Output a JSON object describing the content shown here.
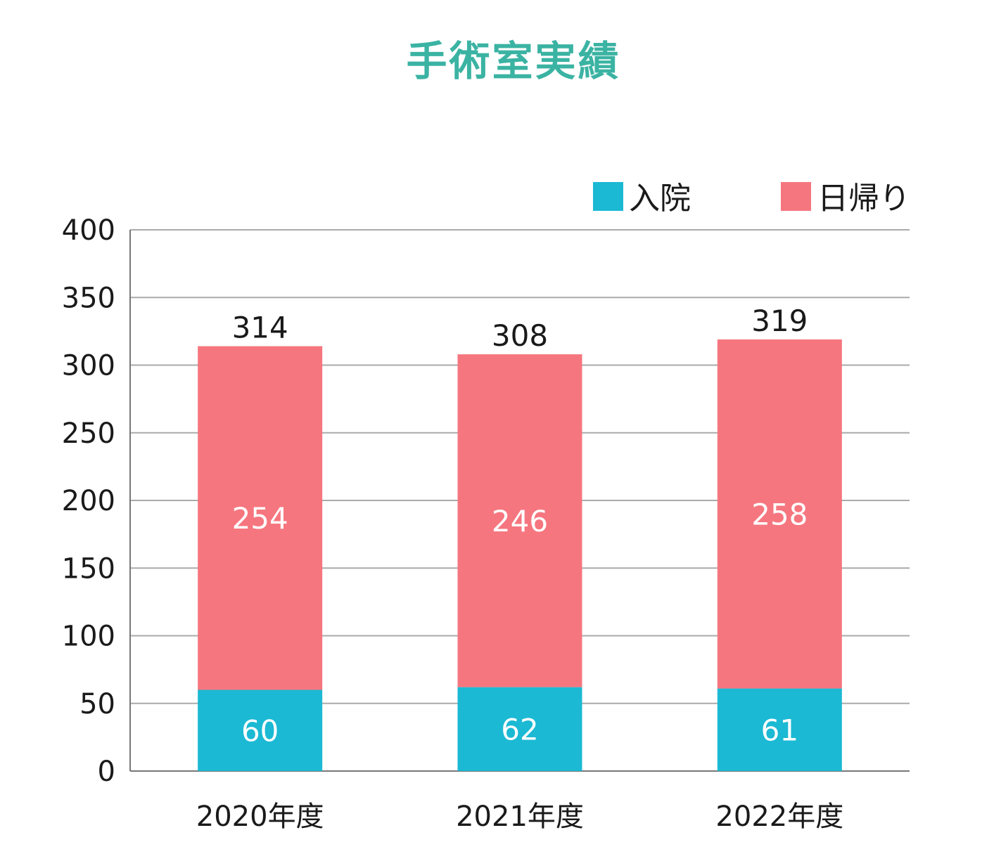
{
  "chart_data": {
    "type": "bar",
    "stacked": true,
    "title": "手術室実績",
    "title_color": "#3bb3a3",
    "categories": [
      "2020年度",
      "2021年度",
      "2022年度"
    ],
    "series": [
      {
        "name": "入院",
        "color": "#1bb9d3",
        "values": [
          60,
          62,
          61
        ]
      },
      {
        "name": "日帰り",
        "color": "#f6767f",
        "values": [
          254,
          246,
          258
        ]
      }
    ],
    "totals": [
      314,
      308,
      319
    ],
    "ylim": [
      0,
      400
    ],
    "yticks": [
      0,
      50,
      100,
      150,
      200,
      250,
      300,
      350,
      400
    ],
    "grid": true,
    "legend": "top-right"
  }
}
